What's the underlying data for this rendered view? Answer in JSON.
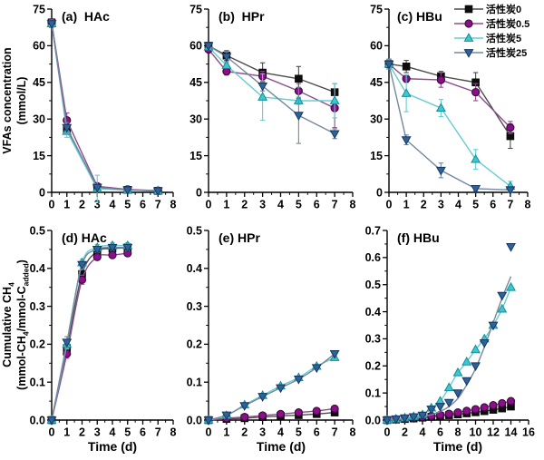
{
  "figure": {
    "x_label": "Time (d)",
    "y_axis_top": {
      "line1": "VFAs concentration",
      "line2": "(mmol/L)"
    },
    "y_axis_bottom": {
      "line1": "Cumulative CH_{4}",
      "line2": "(mmol-CH_{4}/mmol-C_{added})"
    }
  },
  "legend": {
    "items": [
      {
        "key": "ac0",
        "label": "活性炭0"
      },
      {
        "key": "ac05",
        "label": "活性炭0.5"
      },
      {
        "key": "ac5",
        "label": "活性炭5"
      },
      {
        "key": "ac25",
        "label": "活性炭25"
      }
    ]
  },
  "series_styles": {
    "ac0": {
      "marker": "square",
      "fill": "#0d0d0d",
      "stroke": "#0d0d0d",
      "line": "#4d4d4d"
    },
    "ac05": {
      "marker": "circle",
      "fill": "#8b0f8b",
      "stroke": "#40093e",
      "line": "#8a4f8a"
    },
    "ac5": {
      "marker": "triangle-up",
      "fill": "#3fc6ce",
      "stroke": "#0f8f9b",
      "line": "#66cdd1"
    },
    "ac25": {
      "marker": "triangle-down",
      "fill": "#2f629b",
      "stroke": "#14365f",
      "line": "#74889f"
    }
  },
  "chart_data": [
    {
      "id": "a",
      "type": "line",
      "title": "(a)  HAc",
      "ylabel": "VFAs concentration (mmol/L)",
      "xlabel": "",
      "xlim": [
        0,
        8
      ],
      "ylim": [
        0,
        75
      ],
      "xticks": [
        0,
        1,
        2,
        3,
        4,
        5,
        6,
        7,
        8
      ],
      "yticks": [
        0,
        15,
        30,
        45,
        60,
        75
      ],
      "x_minor_step": 0.5,
      "y_minor_step": 7.5,
      "smooth": false,
      "x": [
        0,
        1,
        3,
        5,
        7
      ],
      "series": [
        {
          "key": "ac0",
          "name": "活性炭0",
          "y": [
            69.5,
            26,
            2,
            1,
            0.6
          ],
          "err": [
            1.5,
            2,
            1,
            0.6,
            0.4
          ]
        },
        {
          "key": "ac05",
          "name": "活性炭0.5",
          "y": [
            69.5,
            29.5,
            2.5,
            1.2,
            0.7
          ],
          "err": [
            1.5,
            3,
            1,
            0.6,
            0.4
          ]
        },
        {
          "key": "ac5",
          "name": "活性炭5",
          "y": [
            69,
            25,
            1.5,
            0.9,
            0.6
          ],
          "err": [
            1.5,
            2.5,
            5.5,
            0.6,
            0.4
          ]
        },
        {
          "key": "ac25",
          "name": "活性炭25",
          "y": [
            69,
            26.5,
            2,
            1,
            0.6
          ],
          "err": [
            1.5,
            2,
            1,
            0.6,
            0.4
          ]
        }
      ]
    },
    {
      "id": "b",
      "type": "line",
      "title": "(b)  HPr",
      "ylabel": "VFAs concentration (mmol/L)",
      "xlabel": "",
      "xlim": [
        0,
        8
      ],
      "ylim": [
        0,
        75
      ],
      "xticks": [
        0,
        1,
        2,
        3,
        4,
        5,
        6,
        7,
        8
      ],
      "yticks": [
        0,
        15,
        30,
        45,
        60,
        75
      ],
      "x_minor_step": 0.5,
      "y_minor_step": 7.5,
      "smooth": false,
      "x": [
        0,
        1,
        3,
        5,
        7
      ],
      "series": [
        {
          "key": "ac0",
          "name": "活性炭0",
          "y": [
            60,
            56,
            49,
            46.5,
            41
          ],
          "err": [
            1,
            2,
            4,
            5,
            3.5
          ]
        },
        {
          "key": "ac05",
          "name": "活性炭0.5",
          "y": [
            58.5,
            49.5,
            47.5,
            41.5,
            34.5
          ],
          "err": [
            1,
            1.5,
            2,
            3,
            8
          ]
        },
        {
          "key": "ac5",
          "name": "活性炭5",
          "y": [
            59.5,
            52,
            39,
            37.5,
            37.5
          ],
          "err": [
            1,
            1,
            9.5,
            1.5,
            7
          ]
        },
        {
          "key": "ac25",
          "name": "活性炭25",
          "y": [
            60,
            55.5,
            43.5,
            31.5,
            24
          ],
          "err": [
            1,
            2,
            2,
            11.5,
            2
          ]
        }
      ]
    },
    {
      "id": "c",
      "type": "line",
      "title": "(c) HBu",
      "ylabel": "VFAs concentration (mmol/L)",
      "xlabel": "",
      "xlim": [
        0,
        8
      ],
      "ylim": [
        0,
        75
      ],
      "xticks": [
        0,
        1,
        2,
        3,
        4,
        5,
        6,
        7,
        8
      ],
      "yticks": [
        0,
        15,
        30,
        45,
        60,
        75
      ],
      "x_minor_step": 0.5,
      "y_minor_step": 7.5,
      "smooth": false,
      "x": [
        0,
        1,
        3,
        5,
        7
      ],
      "series": [
        {
          "key": "ac0",
          "name": "活性炭0",
          "y": [
            52.5,
            51.5,
            47.5,
            45,
            23
          ],
          "err": [
            2,
            2.5,
            2,
            4,
            5
          ]
        },
        {
          "key": "ac05",
          "name": "活性炭0.5",
          "y": [
            52.5,
            46.5,
            46,
            41,
            26.5
          ],
          "err": [
            2,
            1.5,
            3,
            3.5,
            2.5
          ]
        },
        {
          "key": "ac5",
          "name": "活性炭5",
          "y": [
            52.5,
            40.5,
            34.5,
            13.5,
            2.5
          ],
          "err": [
            2,
            7.5,
            3.5,
            4,
            2
          ]
        },
        {
          "key": "ac25",
          "name": "活性炭25",
          "y": [
            52.5,
            21.5,
            9,
            1.5,
            1
          ],
          "err": [
            2,
            2,
            3,
            1,
            1
          ]
        }
      ]
    },
    {
      "id": "d",
      "type": "line",
      "title": "(d) HAc",
      "ylabel": "Cumulative CH4 (mmol-CH4/mmol-C added)",
      "xlabel": "Time (d)",
      "xlim": [
        0,
        8
      ],
      "ylim": [
        0,
        0.5
      ],
      "xticks": [
        0,
        1,
        2,
        3,
        4,
        5,
        6,
        7,
        8
      ],
      "yticks": [
        0,
        0.1,
        0.2,
        0.3,
        0.4,
        0.5
      ],
      "x_minor_step": 0.5,
      "y_minor_step": 0.05,
      "smooth": true,
      "x": [
        0,
        1,
        2,
        3,
        4,
        5
      ],
      "series": [
        {
          "key": "ac0",
          "name": "活性炭0",
          "y": [
            0,
            0.19,
            0.385,
            0.445,
            0.452,
            0.455
          ],
          "err": [
            0,
            0.012,
            0.01,
            0.008,
            0.008,
            0.008
          ]
        },
        {
          "key": "ac05",
          "name": "活性炭0.5",
          "y": [
            0,
            0.175,
            0.37,
            0.43,
            0.435,
            0.44
          ],
          "err": [
            0,
            0.012,
            0.012,
            0.008,
            0.008,
            0.008
          ]
        },
        {
          "key": "ac5",
          "name": "活性炭5",
          "y": [
            0,
            0.2,
            0.415,
            0.455,
            0.46,
            0.46
          ],
          "err": [
            0,
            0.012,
            0.01,
            0.008,
            0.008,
            0.008
          ]
        },
        {
          "key": "ac25",
          "name": "活性炭25",
          "y": [
            0,
            0.205,
            0.41,
            0.45,
            0.455,
            0.455
          ],
          "err": [
            0,
            0.015,
            0.01,
            0.008,
            0.008,
            0.008
          ]
        }
      ]
    },
    {
      "id": "e",
      "type": "line",
      "title": "(e) HPr",
      "ylabel": "Cumulative CH4 (mmol-CH4/mmol-C added)",
      "xlabel": "Time (d)",
      "xlim": [
        0,
        8
      ],
      "ylim": [
        0,
        0.5
      ],
      "xticks": [
        0,
        1,
        2,
        3,
        4,
        5,
        6,
        7,
        8
      ],
      "yticks": [
        0,
        0.1,
        0.2,
        0.3,
        0.4,
        0.5
      ],
      "x_minor_step": 0.5,
      "y_minor_step": 0.05,
      "smooth": true,
      "x": [
        0,
        1,
        2,
        3,
        4,
        5,
        6,
        7
      ],
      "series": [
        {
          "key": "ac0",
          "name": "活性炭0",
          "y": [
            0,
            0.003,
            0.005,
            0.008,
            0.011,
            0.013,
            0.016,
            0.02
          ]
        },
        {
          "key": "ac05",
          "name": "活性炭0.5",
          "y": [
            0,
            0.005,
            0.008,
            0.012,
            0.016,
            0.02,
            0.024,
            0.03
          ]
        },
        {
          "key": "ac5",
          "name": "活性炭5",
          "y": [
            0,
            0.012,
            0.04,
            0.065,
            0.09,
            0.112,
            0.142,
            0.165
          ]
        },
        {
          "key": "ac25",
          "name": "活性炭25",
          "y": [
            0,
            0.013,
            0.038,
            0.062,
            0.085,
            0.108,
            0.138,
            0.175
          ]
        }
      ]
    },
    {
      "id": "f",
      "type": "line",
      "title": "(f) HBu",
      "ylabel": "Cumulative CH4 (mmol-CH4/mmol-C added)",
      "xlabel": "Time (d)",
      "xlim": [
        0,
        16
      ],
      "ylim": [
        0,
        0.7
      ],
      "xticks": [
        0,
        2,
        4,
        6,
        8,
        10,
        12,
        14,
        16
      ],
      "yticks": [
        0,
        0.1,
        0.2,
        0.3,
        0.4,
        0.5,
        0.6,
        0.7
      ],
      "x_minor_step": 1,
      "y_minor_step": 0.05,
      "smooth": true,
      "x": [
        0,
        1,
        2,
        3,
        4,
        5,
        6,
        7,
        8,
        9,
        10,
        11,
        12,
        13,
        14
      ],
      "series": [
        {
          "key": "ac0",
          "name": "活性炭0",
          "y": [
            0,
            0.002,
            0.004,
            0.006,
            0.009,
            0.012,
            0.015,
            0.018,
            0.021,
            0.025,
            0.029,
            0.033,
            0.038,
            0.043,
            0.05
          ]
        },
        {
          "key": "ac05",
          "name": "活性炭0.5",
          "y": [
            0,
            0.003,
            0.005,
            0.008,
            0.011,
            0.015,
            0.019,
            0.023,
            0.028,
            0.034,
            0.04,
            0.047,
            0.055,
            0.062,
            0.07
          ]
        },
        {
          "key": "ac5",
          "name": "活性炭5",
          "y": [
            0,
            0.004,
            0.008,
            0.013,
            0.02,
            0.045,
            0.07,
            0.12,
            0.175,
            0.215,
            0.26,
            0.3,
            0.35,
            0.41,
            0.49
          ]
        },
        {
          "key": "ac25",
          "name": "活性炭25",
          "y": [
            0,
            0.004,
            0.008,
            0.012,
            0.018,
            0.04,
            0.05,
            0.065,
            0.1,
            0.145,
            0.2,
            0.285,
            0.35,
            0.46,
            0.64
          ],
          "fit_y": [
            0,
            0.002,
            0.004,
            0.007,
            0.012,
            0.02,
            0.032,
            0.05,
            0.08,
            0.13,
            0.19,
            0.27,
            0.36,
            0.45,
            0.53
          ]
        }
      ]
    }
  ]
}
